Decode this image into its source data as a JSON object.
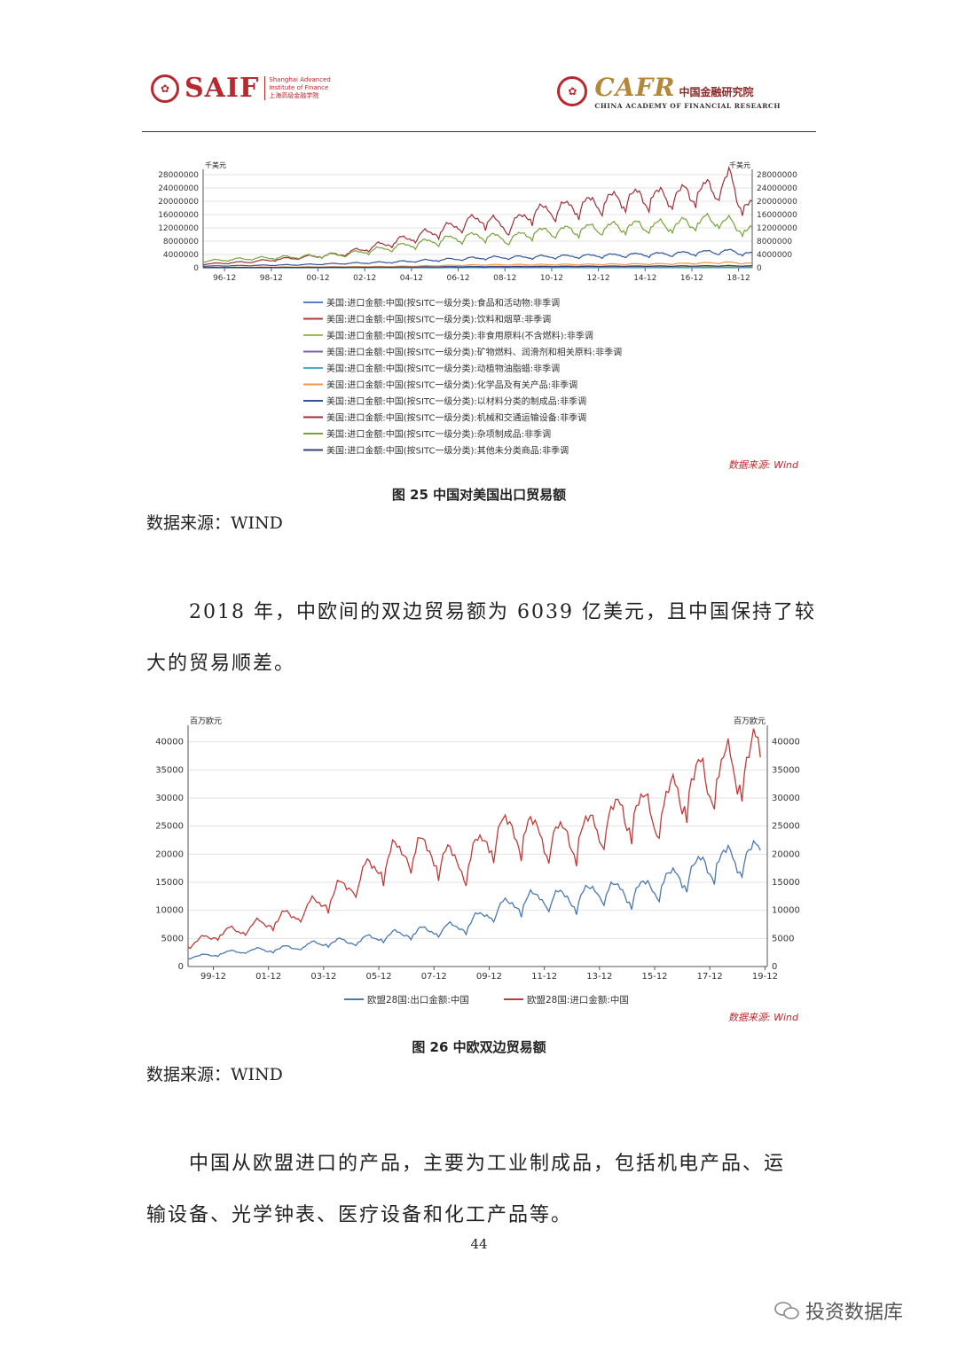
{
  "header": {
    "saif_logo_text": "SAIF",
    "saif_sub_en1": "Shanghai Advanced",
    "saif_sub_en2": "Institute of Finance",
    "saif_sub_cn": "上海高级金融学院",
    "cafr_logo_text": "CAFR",
    "cafr_cn": "中国金融研究院",
    "cafr_en": "CHINA ACADEMY OF FINANCIAL RESEARCH"
  },
  "chart_data": [
    {
      "type": "line",
      "unit_left": "千美元",
      "unit_right": "千美元",
      "x_tick_labels": [
        "96-12",
        "98-12",
        "00-12",
        "02-12",
        "04-12",
        "06-12",
        "08-12",
        "10-12",
        "12-12",
        "14-12",
        "16-12",
        "18-12"
      ],
      "y_ticks": [
        0,
        4000000,
        8000000,
        12000000,
        16000000,
        20000000,
        24000000,
        28000000
      ],
      "ylim": [
        0,
        28000000
      ],
      "xlim": [
        1996,
        2019.5
      ],
      "series": [
        {
          "name": "美国:进口金额:中国(按SITC一级分类):食品和活动物:非季调",
          "color": "#5b7fc7",
          "x": [
            1996,
            2000,
            2004,
            2008,
            2012,
            2016,
            2018.5,
            2019.5
          ],
          "values": [
            100000,
            150000,
            250000,
            400000,
            500000,
            550000,
            600000,
            550000
          ]
        },
        {
          "name": "美国:进口金额:中国(按SITC一级分类):饮料和烟草:非季调",
          "color": "#b03a3a",
          "x": [
            1996,
            2000,
            2004,
            2008,
            2012,
            2016,
            2018.5,
            2019.5
          ],
          "values": [
            5000,
            8000,
            10000,
            15000,
            20000,
            25000,
            30000,
            30000
          ]
        },
        {
          "name": "美国:进口金额:中国(按SITC一级分类):非食用原料(不含燃料):非季调",
          "color": "#9bbb59",
          "x": [
            1996,
            2000,
            2004,
            2008,
            2012,
            2016,
            2018.5,
            2019.5
          ],
          "values": [
            60000,
            90000,
            150000,
            250000,
            300000,
            280000,
            300000,
            250000
          ]
        },
        {
          "name": "美国:进口金额:中国(按SITC一级分类):矿物燃料、润滑剂和相关原料:非季调",
          "color": "#7a5ca8",
          "x": [
            1996,
            2000,
            2004,
            2008,
            2012,
            2016,
            2018.5,
            2019.5
          ],
          "values": [
            20000,
            30000,
            50000,
            100000,
            80000,
            60000,
            70000,
            60000
          ]
        },
        {
          "name": "美国:进口金额:中国(按SITC一级分类):动植物油脂蜡:非季调",
          "color": "#4bacc6",
          "x": [
            1996,
            2000,
            2004,
            2008,
            2012,
            2016,
            2018.5,
            2019.5
          ],
          "values": [
            2000,
            3000,
            4000,
            6000,
            8000,
            9000,
            10000,
            10000
          ]
        },
        {
          "name": "美国:进口金额:中国(按SITC一级分类):化学品及有关产品:非季调",
          "color": "#f79646",
          "x": [
            1996,
            2000,
            2004,
            2008,
            2012,
            2016,
            2018.5,
            2019.5
          ],
          "values": [
            150000,
            250000,
            400000,
            900000,
            1000000,
            1200000,
            1600000,
            1300000
          ]
        },
        {
          "name": "美国:进口金额:中国(按SITC一级分类):以材料分类的制成品:非季调",
          "color": "#2f5597",
          "x": [
            1996,
            2000,
            2004,
            2008,
            2012,
            2016,
            2018.5,
            2019.5
          ],
          "values": [
            500000,
            900000,
            1700000,
            3000000,
            3500000,
            4200000,
            5000000,
            4200000
          ]
        },
        {
          "name": "美国:进口金额:中国(按SITC一级分类):机械和交通运输设备:非季调",
          "color": "#9e2f3a",
          "x": [
            1996,
            1998,
            2000,
            2002,
            2004,
            2006,
            2008,
            2009,
            2010,
            2012,
            2014,
            2016,
            2018,
            2018.5,
            2019,
            2019.5
          ],
          "values": [
            1100000,
            1800000,
            3000000,
            4200000,
            7500000,
            11000000,
            15000000,
            12000000,
            16500000,
            18500000,
            21000000,
            21500000,
            24000000,
            26500000,
            20000000,
            18000000
          ]
        },
        {
          "name": "美国:进口金额:中国(按SITC一级分类):杂项制成品:非季调",
          "color": "#77a33a",
          "x": [
            1996,
            1998,
            2000,
            2002,
            2004,
            2006,
            2008,
            2009,
            2010,
            2012,
            2014,
            2016,
            2018,
            2018.5,
            2019,
            2019.5
          ],
          "values": [
            2000000,
            2800000,
            3300000,
            4000000,
            6000000,
            8200000,
            9800000,
            8500000,
            10500000,
            11500000,
            12500000,
            12800000,
            14500000,
            13500000,
            12000000,
            11000000
          ]
        },
        {
          "name": "美国:进口金额:中国(按SITC一级分类):其他未分类商品:非季调",
          "color": "#3b3b78",
          "x": [
            1996,
            2000,
            2004,
            2008,
            2012,
            2016,
            2018.5,
            2019.5
          ],
          "values": [
            80000,
            120000,
            200000,
            300000,
            400000,
            500000,
            600000,
            500000
          ]
        }
      ],
      "source_note": "数据来源: Wind"
    },
    {
      "type": "line",
      "unit_left": "百万欧元",
      "unit_right": "百万欧元",
      "x_tick_labels": [
        "99-12",
        "01-12",
        "03-12",
        "05-12",
        "07-12",
        "09-12",
        "11-12",
        "13-12",
        "15-12",
        "17-12",
        "19-12"
      ],
      "y_ticks": [
        0,
        5000,
        10000,
        15000,
        20000,
        25000,
        30000,
        35000,
        40000
      ],
      "ylim": [
        0,
        42000
      ],
      "xlim": [
        1999,
        2020
      ],
      "series": [
        {
          "name": "欧盟28国:出口金额:中国",
          "color": "#4a78b0",
          "x": [
            1999,
            2000,
            2001,
            2002,
            2003,
            2004,
            2005,
            2006,
            2007,
            2008,
            2009,
            2010,
            2011,
            2012,
            2013,
            2014,
            2015,
            2016,
            2017,
            2018,
            2019,
            2019.8
          ],
          "values": [
            1600,
            2200,
            2800,
            3000,
            3500,
            4300,
            4500,
            5300,
            6000,
            6500,
            7200,
            9800,
            11500,
            12300,
            12000,
            13800,
            13000,
            14500,
            16500,
            18500,
            19500,
            20000
          ]
        },
        {
          "name": "欧盟28国:进口金额:中国",
          "color": "#c03a3a",
          "x": [
            1999,
            2000,
            2001,
            2002,
            2003,
            2004,
            2005,
            2006,
            2007,
            2008,
            2009,
            2010,
            2011,
            2012,
            2013,
            2014,
            2015,
            2016,
            2017,
            2018,
            2019,
            2019.8
          ],
          "values": [
            3800,
            5700,
            6700,
            8000,
            9500,
            12000,
            15000,
            18500,
            21000,
            20000,
            18000,
            23500,
            24500,
            23000,
            23000,
            25500,
            28000,
            27500,
            32000,
            34000,
            36000,
            37500
          ]
        }
      ],
      "source_note": "数据来源: Wind"
    }
  ],
  "captions": {
    "fig25": "图 25 中国对美国出口贸易额",
    "fig25_source": "数据来源：WIND",
    "fig26": "图 26 中欧双边贸易额",
    "fig26_source": "数据来源：WIND"
  },
  "paragraphs": {
    "p1_line1": "2018 年，中欧间的双边贸易额为 6039 亿美元，且中国保持了较",
    "p1_line2": "大的贸易顺差。",
    "p2_line1": "中国从欧盟进口的产品，主要为工业制成品，包括机电产品、运",
    "p2_line2": "输设备、光学钟表、医疗设备和化工产品等。"
  },
  "page_number": "44",
  "watermark": "投资数据库"
}
